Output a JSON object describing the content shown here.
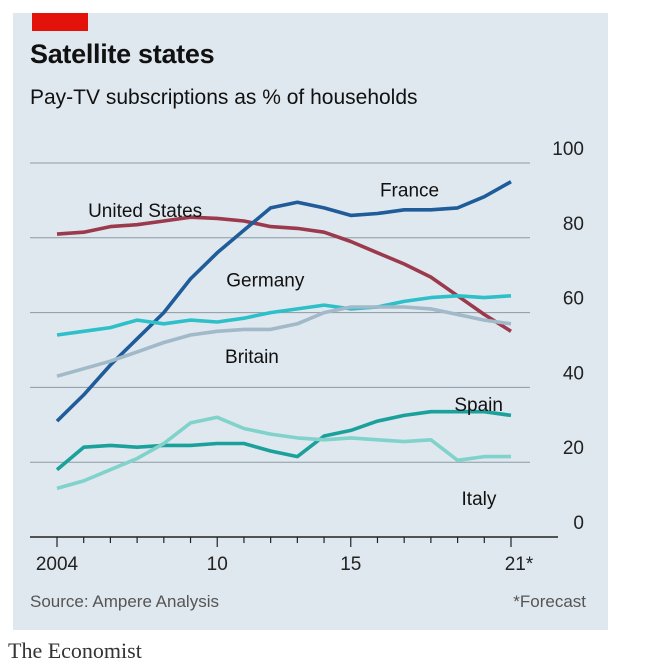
{
  "header": {
    "title": "Satellite states",
    "subtitle": "Pay-TV subscriptions as % of households"
  },
  "footer": {
    "source": "Source: Ampere Analysis",
    "note": "*Forecast",
    "brand": "The Economist"
  },
  "colors": {
    "panel": "#dfe8ee",
    "red_tag": "#e3120b",
    "gridline": "#8e9aa3",
    "axis": "#222222"
  },
  "chart_data": {
    "type": "line",
    "title": "Satellite states",
    "subtitle": "Pay-TV subscriptions as % of households",
    "xlabel": "",
    "ylabel": "",
    "xlim": [
      2004,
      2021
    ],
    "ylim": [
      0,
      100
    ],
    "x_ticks": [
      2004,
      2005,
      2006,
      2007,
      2008,
      2009,
      2010,
      2011,
      2012,
      2013,
      2014,
      2015,
      2016,
      2017,
      2018,
      2019,
      2020,
      2021
    ],
    "x_tick_labels": [
      {
        "x": 2004,
        "label": "2004"
      },
      {
        "x": 2010,
        "label": "10"
      },
      {
        "x": 2015,
        "label": "15"
      },
      {
        "x": 2021,
        "label": "21*"
      }
    ],
    "y_ticks": [
      0,
      20,
      40,
      60,
      80,
      100
    ],
    "y_tick_labels": [
      "0",
      "20",
      "40",
      "60",
      "80",
      "100"
    ],
    "y_axis_side": "right",
    "x": [
      2004,
      2005,
      2006,
      2007,
      2008,
      2009,
      2010,
      2011,
      2012,
      2013,
      2014,
      2015,
      2016,
      2017,
      2018,
      2019,
      2020,
      2021
    ],
    "series": [
      {
        "name": "United States",
        "color": "#9b3a4d",
        "label_x": 2007.3,
        "label_y": 85.5,
        "label_anchor": "middle",
        "values": [
          81,
          81.5,
          83,
          83.5,
          84.5,
          85.5,
          85.2,
          84.5,
          83,
          82.5,
          81.5,
          79,
          76,
          73,
          69.5,
          64.5,
          59.5,
          55
        ]
      },
      {
        "name": "France",
        "color": "#1f5c99",
        "label_x": 2017.2,
        "label_y": 91,
        "label_anchor": "middle",
        "values": [
          31,
          38,
          46,
          53,
          60,
          69,
          76,
          82,
          88,
          89.5,
          88,
          86,
          86.5,
          87.5,
          87.5,
          88,
          91,
          95
        ]
      },
      {
        "name": "Germany",
        "color": "#2ec0c9",
        "label_x": 2011.8,
        "label_y": 67,
        "label_anchor": "middle",
        "values": [
          54,
          55,
          56,
          58,
          57,
          58,
          57.5,
          58.5,
          60,
          61,
          62,
          61,
          61.5,
          63,
          64,
          64.5,
          64,
          64.5
        ]
      },
      {
        "name": "Britain",
        "color": "#a1b9c8",
        "label_x": 2011.3,
        "label_y": 46.5,
        "label_anchor": "middle",
        "values": [
          43,
          45,
          47,
          49.5,
          52,
          54,
          55,
          55.5,
          55.5,
          57,
          60,
          61.5,
          61.5,
          61.5,
          61,
          59.5,
          58,
          57
        ]
      },
      {
        "name": "Spain",
        "color": "#1ba19b",
        "label_x": 2020.7,
        "label_y": 33.7,
        "label_anchor": "end",
        "values": [
          18,
          24,
          24.5,
          24,
          24.5,
          24.5,
          25,
          25,
          23,
          21.5,
          27,
          28.5,
          31,
          32.5,
          33.5,
          33.5,
          33.5,
          32.5
        ]
      },
      {
        "name": "Italy",
        "color": "#80d2cb",
        "label_x": 2019.8,
        "label_y": 8.5,
        "label_anchor": "middle",
        "values": [
          13,
          15,
          18,
          21,
          25,
          30.5,
          32,
          29,
          27.5,
          26.5,
          26,
          26.5,
          26,
          25.5,
          26,
          20.5,
          21.5,
          21.5
        ]
      }
    ]
  }
}
